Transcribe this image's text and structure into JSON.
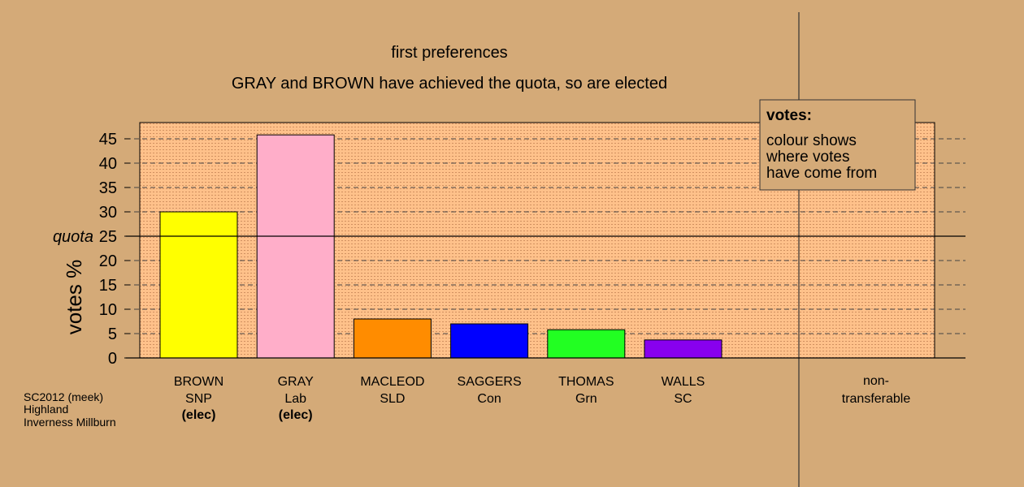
{
  "chart_data": {
    "type": "bar",
    "title": "first preferences",
    "subtitle": "GRAY and BROWN have achieved the quota, so are elected",
    "ylabel": "votes %",
    "ylim": [
      0,
      48
    ],
    "yticks": [
      0,
      5,
      10,
      15,
      20,
      25,
      30,
      35,
      40,
      45
    ],
    "grid": true,
    "quota": {
      "label": "quota",
      "value": 25
    },
    "categories": [
      {
        "name": "BROWN",
        "party": "SNP",
        "status": "(elec)",
        "value": 30.0,
        "color": "#ffff00"
      },
      {
        "name": "GRAY",
        "party": "Lab",
        "status": "(elec)",
        "value": 45.8,
        "color": "#ffaec9"
      },
      {
        "name": "MACLEOD",
        "party": "SLD",
        "status": "",
        "value": 8.0,
        "color": "#ff8c00"
      },
      {
        "name": "SAGGERS",
        "party": "Con",
        "status": "",
        "value": 7.0,
        "color": "#0000ff"
      },
      {
        "name": "THOMAS",
        "party": "Grn",
        "status": "",
        "value": 5.8,
        "color": "#22ff22"
      },
      {
        "name": "WALLS",
        "party": "SC",
        "status": "",
        "value": 3.7,
        "color": "#8800ee"
      }
    ],
    "non_transferable": {
      "label_line1": "non-",
      "label_line2": "transferable",
      "value": 0
    },
    "legend": {
      "title": "votes:",
      "lines": [
        "colour shows",
        "where votes",
        "have come from"
      ],
      "placement": "top-right"
    }
  },
  "footer": {
    "line1": "SC2012 (meek)",
    "line2": "Highland",
    "line3": "Inverness Millburn"
  }
}
